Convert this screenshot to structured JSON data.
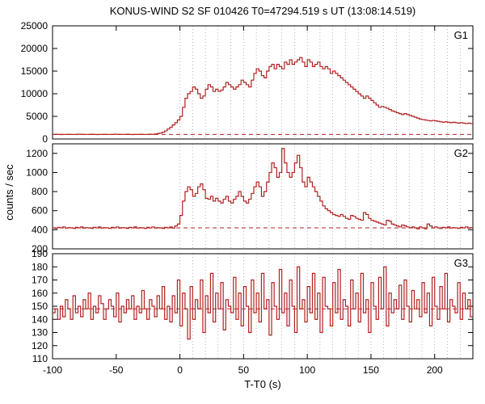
{
  "title": "KONUS-WIND S2 SF 010426 T0=47294.519 s UT (13:08:14.519)",
  "xaxis_label": "T-T0 (s)",
  "yaxis_label": "counts / sec",
  "line_color": "#b22222",
  "background_color": "#ffffff",
  "grid_color": "#888888",
  "axis_color": "#000000",
  "title_fontsize": 13,
  "label_fontsize": 13,
  "tick_fontsize": 12,
  "figure_width": 600,
  "figure_height": 500,
  "x": {
    "min": -100,
    "max": 230,
    "tick_step_major": 50,
    "vgrid_step": 10,
    "vgrid_start": 0
  },
  "panels": [
    {
      "name": "G1",
      "ymin": 0,
      "ymax": 25000,
      "tick_step": 5000,
      "baseline": 1000,
      "series_step": 2,
      "series": [
        1000,
        1050,
        1000,
        980,
        1020,
        1000,
        1040,
        1000,
        1020,
        1000,
        1050,
        1030,
        1000,
        1020,
        1000,
        1050,
        1000,
        980,
        1020,
        1000,
        1040,
        1000,
        1020,
        1000,
        1050,
        1030,
        1000,
        1020,
        1000,
        1050,
        1000,
        980,
        1020,
        1000,
        1040,
        1000,
        1020,
        1000,
        1050,
        1030,
        1100,
        1200,
        1300,
        1500,
        1800,
        2200,
        2600,
        3100,
        3600,
        4200,
        5000,
        7000,
        9000,
        10000,
        10500,
        11500,
        11000,
        10000,
        9000,
        9500,
        11000,
        12000,
        11500,
        10500,
        11000,
        10500,
        10800,
        11500,
        12500,
        12000,
        11500,
        11000,
        11500,
        12000,
        13000,
        12500,
        12000,
        11500,
        13000,
        14500,
        15500,
        15000,
        14000,
        13500,
        15000,
        16000,
        16500,
        15500,
        16500,
        16000,
        15500,
        17000,
        16500,
        17500,
        16500,
        17000,
        17500,
        18000,
        17000,
        16000,
        17500,
        17000,
        16000,
        16500,
        17000,
        16000,
        15500,
        16000,
        15500,
        14500,
        15000,
        14500,
        14000,
        13500,
        13000,
        12500,
        12000,
        11500,
        11000,
        10500,
        10000,
        9500,
        9000,
        9500,
        9000,
        8500,
        8000,
        7500,
        7000,
        7200,
        7000,
        6800,
        6500,
        6200,
        6000,
        5800,
        5600,
        5400,
        5600,
        5400,
        5200,
        5000,
        4800,
        4600,
        4400,
        4300,
        4200,
        4100,
        4000,
        4100,
        4000,
        3900,
        3800,
        3700,
        3800,
        3700,
        3600,
        3700,
        3600,
        3500,
        3600,
        3500,
        3400,
        3500,
        3400
      ]
    },
    {
      "name": "G2",
      "ymin": 200,
      "ymax": 1300,
      "tick_step": 200,
      "baseline": 420,
      "series_step": 2,
      "series": [
        420,
        415,
        425,
        420,
        430,
        418,
        422,
        420,
        415,
        425,
        420,
        430,
        418,
        422,
        420,
        415,
        425,
        420,
        430,
        418,
        422,
        420,
        415,
        425,
        420,
        430,
        418,
        422,
        420,
        415,
        425,
        420,
        430,
        418,
        422,
        420,
        415,
        425,
        420,
        430,
        418,
        422,
        420,
        415,
        425,
        420,
        430,
        418,
        440,
        460,
        550,
        700,
        800,
        850,
        820,
        750,
        780,
        850,
        880,
        820,
        730,
        720,
        750,
        700,
        730,
        700,
        680,
        720,
        750,
        700,
        680,
        720,
        750,
        800,
        750,
        700,
        680,
        720,
        780,
        850,
        900,
        850,
        750,
        800,
        900,
        1000,
        1100,
        1050,
        950,
        1000,
        1250,
        1100,
        1000,
        950,
        1000,
        1100,
        1180,
        1050,
        900,
        850,
        950,
        900,
        850,
        800,
        750,
        700,
        650,
        620,
        600,
        580,
        560,
        550,
        540,
        560,
        540,
        520,
        510,
        550,
        540,
        520,
        510,
        500,
        580,
        560,
        520,
        500,
        490,
        480,
        470,
        460,
        450,
        500,
        490,
        460,
        450,
        440,
        430,
        450,
        440,
        430,
        420,
        430,
        420,
        410,
        430,
        420,
        410,
        460,
        440,
        420,
        430,
        420,
        415,
        425,
        420,
        430,
        418,
        422,
        420,
        415,
        425,
        420,
        430,
        418,
        422
      ]
    },
    {
      "name": "G3",
      "ymin": 110,
      "ymax": 190,
      "tick_step": 10,
      "baseline": 148,
      "series_step": 2,
      "series": [
        145,
        148,
        140,
        150,
        142,
        155,
        148,
        140,
        158,
        145,
        150,
        142,
        155,
        148,
        160,
        140,
        150,
        145,
        158,
        152,
        140,
        148,
        155,
        150,
        142,
        160,
        138,
        150,
        145,
        155,
        148,
        158,
        140,
        150,
        145,
        162,
        148,
        140,
        155,
        150,
        142,
        158,
        148,
        165,
        140,
        150,
        138,
        158,
        145,
        170,
        135,
        160,
        148,
        125,
        165,
        140,
        155,
        148,
        170,
        130,
        158,
        145,
        175,
        138,
        160,
        148,
        168,
        132,
        155,
        150,
        145,
        172,
        140,
        160,
        135,
        165,
        150,
        130,
        170,
        145,
        160,
        138,
        175,
        148,
        155,
        128,
        168,
        150,
        140,
        178,
        145,
        160,
        135,
        170,
        150,
        130,
        180,
        148,
        155,
        138,
        165,
        145,
        175,
        140,
        160,
        130,
        172,
        150,
        148,
        135,
        168,
        145,
        178,
        140,
        155,
        150,
        135,
        170,
        148,
        160,
        138,
        175,
        145,
        155,
        130,
        168,
        150,
        140,
        172,
        148,
        180,
        135,
        160,
        145,
        155,
        148,
        166,
        140,
        170,
        150,
        138,
        162,
        148,
        155,
        142,
        168,
        145,
        160,
        135,
        172,
        150,
        140,
        165,
        148,
        175,
        138,
        155,
        150,
        145,
        168,
        140,
        160,
        148,
        155,
        142
      ]
    }
  ]
}
